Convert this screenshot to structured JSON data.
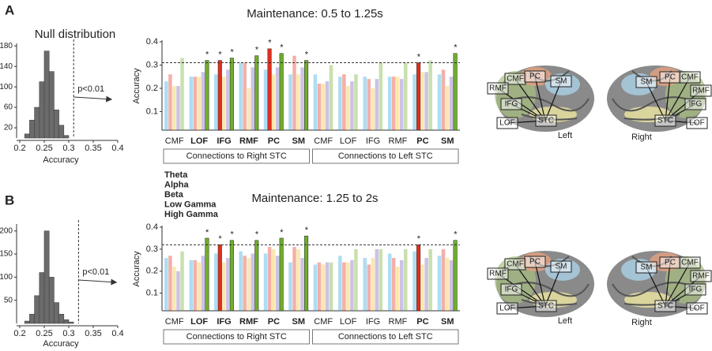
{
  "panel_labels": [
    "A",
    "B"
  ],
  "brain_labels": {
    "regions": [
      "CMF",
      "PC",
      "SM",
      "RMF",
      "IFG",
      "STC",
      "LOF"
    ],
    "hemispheres": [
      "Left",
      "Right"
    ]
  },
  "chart_data": [
    {
      "type": "histogram",
      "title": "Null distribution",
      "x_label": "Accuracy",
      "annotation": "p<0.01",
      "bins": [
        0.21,
        0.22,
        0.23,
        0.24,
        0.25,
        0.26,
        0.27,
        0.28,
        0.29,
        0.3
      ],
      "counts": [
        8,
        35,
        60,
        110,
        170,
        130,
        55,
        25,
        5
      ],
      "color": "#6b6b6b",
      "threshold": 0.31,
      "xlim": [
        0.2,
        0.4
      ],
      "xticks": [
        0.2,
        0.25,
        0.3,
        0.35,
        0.4
      ],
      "ylim": [
        0,
        185
      ],
      "yticks": [
        20,
        60,
        100,
        140,
        180
      ]
    },
    {
      "type": "bar",
      "title": "Maintenance: 0.5 to 1.25s",
      "y_label": "Accuracy",
      "categories": [
        "CMF",
        "LOF",
        "IFG",
        "RMF",
        "PC",
        "SM",
        "CMF",
        "LOF",
        "IFG",
        "RMF",
        "PC",
        "SM"
      ],
      "group_labels": [
        "Connections to Right STC",
        "Connections to Left STC"
      ],
      "series": [
        {
          "name": "Theta",
          "color": "#2aa6dc",
          "values": [
            0.23,
            0.25,
            0.26,
            0.31,
            0.28,
            0.26,
            0.26,
            0.25,
            0.25,
            0.25,
            0.26,
            0.26
          ]
        },
        {
          "name": "Alpha",
          "color": "#e0301e",
          "values": [
            0.26,
            0.25,
            0.32,
            0.31,
            0.37,
            0.34,
            0.22,
            0.26,
            0.24,
            0.25,
            0.31,
            0.28
          ]
        },
        {
          "name": "Beta",
          "color": "#f2c230",
          "values": [
            0.21,
            0.25,
            0.25,
            0.2,
            0.26,
            0.26,
            0.22,
            0.21,
            0.2,
            0.25,
            0.27,
            0.21
          ]
        },
        {
          "name": "Low Gamma",
          "color": "#7b5fc0",
          "values": [
            0.21,
            0.27,
            0.28,
            0.29,
            0.29,
            0.29,
            0.23,
            0.23,
            0.24,
            0.24,
            0.27,
            0.25
          ]
        },
        {
          "name": "High Gamma",
          "color": "#6fae2a",
          "values": [
            0.33,
            0.32,
            0.33,
            0.34,
            0.35,
            0.32,
            0.3,
            0.26,
            0.31,
            0.31,
            0.32,
            0.35
          ]
        }
      ],
      "annotations": [
        {
          "text": "*",
          "category": 1,
          "series": 4
        },
        {
          "text": "*",
          "category": 2,
          "series": 1
        },
        {
          "text": "*",
          "category": 2,
          "series": 4
        },
        {
          "text": "*",
          "category": 3,
          "series": 4
        },
        {
          "text": "*",
          "category": 4,
          "series": 1
        },
        {
          "text": "*",
          "category": 4,
          "series": 4
        },
        {
          "text": "*",
          "category": 5,
          "series": 4
        },
        {
          "text": "*",
          "category": 10,
          "series": 1
        },
        {
          "text": "*",
          "category": 11,
          "series": 4
        }
      ],
      "threshold": 0.31,
      "ylim": [
        0.02,
        0.4
      ],
      "yticks": [
        0.1,
        0.2,
        0.3,
        0.4
      ]
    },
    {
      "type": "histogram",
      "x_label": "Accuracy",
      "annotation": "p<0.01",
      "bins": [
        0.21,
        0.22,
        0.23,
        0.24,
        0.25,
        0.26,
        0.27,
        0.28,
        0.29,
        0.3,
        0.31
      ],
      "counts": [
        5,
        20,
        60,
        110,
        200,
        100,
        45,
        20,
        8,
        3
      ],
      "color": "#6b6b6b",
      "threshold": 0.32,
      "xlim": [
        0.2,
        0.4
      ],
      "xticks": [
        0.2,
        0.25,
        0.3,
        0.35,
        0.4
      ],
      "ylim": [
        0,
        215
      ],
      "yticks": [
        50,
        100,
        150,
        200
      ]
    },
    {
      "type": "bar",
      "title": "Maintenance: 1.25 to 2s",
      "y_label": "Accuracy",
      "categories": [
        "CMF",
        "LOF",
        "IFG",
        "RMF",
        "PC",
        "SM",
        "CMF",
        "LOF",
        "IFG",
        "RMF",
        "PC",
        "SM"
      ],
      "group_labels": [
        "Connections to Right STC",
        "Connections to Left STC"
      ],
      "series": [
        {
          "name": "Theta",
          "color": "#2aa6dc",
          "values": [
            0.26,
            0.25,
            0.28,
            0.29,
            0.28,
            0.24,
            0.23,
            0.27,
            0.26,
            0.28,
            0.29,
            0.27
          ]
        },
        {
          "name": "Alpha",
          "color": "#e0301e",
          "values": [
            0.27,
            0.25,
            0.32,
            0.27,
            0.31,
            0.31,
            0.24,
            0.24,
            0.23,
            0.26,
            0.32,
            0.3
          ]
        },
        {
          "name": "Beta",
          "color": "#f2c230",
          "values": [
            0.22,
            0.24,
            0.24,
            0.26,
            0.3,
            0.3,
            0.23,
            0.24,
            0.26,
            0.22,
            0.23,
            0.26
          ]
        },
        {
          "name": "Low Gamma",
          "color": "#7b5fc0",
          "values": [
            0.2,
            0.27,
            0.26,
            0.28,
            0.27,
            0.26,
            0.24,
            0.25,
            0.3,
            0.25,
            0.26,
            0.25
          ]
        },
        {
          "name": "High Gamma",
          "color": "#6fae2a",
          "values": [
            0.29,
            0.35,
            0.34,
            0.34,
            0.35,
            0.36,
            0.24,
            0.3,
            0.3,
            0.3,
            0.3,
            0.34
          ]
        }
      ],
      "annotations": [
        {
          "text": "*",
          "category": 1,
          "series": 4
        },
        {
          "text": "*",
          "category": 2,
          "series": 1
        },
        {
          "text": "*",
          "category": 2,
          "series": 4
        },
        {
          "text": "*",
          "category": 3,
          "series": 4
        },
        {
          "text": "*",
          "category": 4,
          "series": 4
        },
        {
          "text": "*",
          "category": 5,
          "series": 4
        },
        {
          "text": "*",
          "category": 10,
          "series": 1
        },
        {
          "text": "*",
          "category": 11,
          "series": 4
        }
      ],
      "threshold": 0.32,
      "ylim": [
        0.02,
        0.4
      ],
      "yticks": [
        0.1,
        0.2,
        0.3,
        0.4
      ]
    }
  ]
}
